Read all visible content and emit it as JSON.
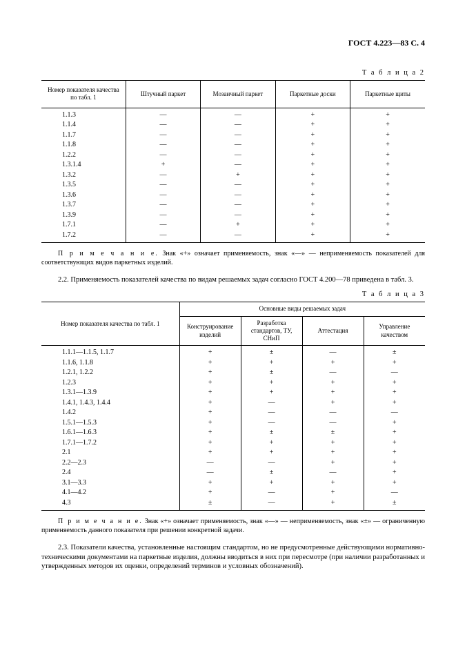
{
  "header": {
    "doc_ref": "ГОСТ 4.223—83 С. 4"
  },
  "table2": {
    "caption": "Т а б л и ц а   2",
    "headers": [
      "Номер показателя качества по табл. 1",
      "Штучный паркет",
      "Мозаичный паркет",
      "Паркетные доски",
      "Паркетные щиты"
    ],
    "rows": [
      {
        "label": "1.1.3",
        "c": [
          "—",
          "—",
          "+",
          "+"
        ]
      },
      {
        "label": "1.1.4",
        "c": [
          "—",
          "—",
          "+",
          "+"
        ]
      },
      {
        "label": "1.1.7",
        "c": [
          "—",
          "—",
          "+",
          "+"
        ]
      },
      {
        "label": "1.1.8",
        "c": [
          "—",
          "—",
          "+",
          "+"
        ]
      },
      {
        "label": "1.2.2",
        "c": [
          "—",
          "—",
          "+",
          "+"
        ]
      },
      {
        "label": "1.3.1.4",
        "c": [
          "+",
          "—",
          "+",
          "+"
        ]
      },
      {
        "label": "1.3.2",
        "c": [
          "—",
          "+",
          "+",
          "+"
        ]
      },
      {
        "label": "1.3.5",
        "c": [
          "—",
          "—",
          "+",
          "+"
        ]
      },
      {
        "label": "1.3.6",
        "c": [
          "—",
          "—",
          "+",
          "+"
        ]
      },
      {
        "label": "1.3.7",
        "c": [
          "—",
          "—",
          "+",
          "+"
        ]
      },
      {
        "label": "1.3.9",
        "c": [
          "—",
          "—",
          "+",
          "+"
        ]
      },
      {
        "label": "1.7.1",
        "c": [
          "—",
          "+",
          "+",
          "+"
        ]
      },
      {
        "label": "1.7.2",
        "c": [
          "—",
          "—",
          "+",
          "+"
        ]
      }
    ]
  },
  "note2": {
    "lead": "П р и м е ч а н и е.",
    "text": " Знак «+» означает применяемость, знак «—» — неприменяемость показателей для соответствующих видов паркетных изделий."
  },
  "para22": "2.2. Применяемость показателей качества по видам решаемых задач согласно ГОСТ 4.200—78 приведена в табл. 3.",
  "table3": {
    "caption": "Т а б л и ц а   3",
    "header_row1": "Номер показателя качества по табл. 1",
    "header_group": "Основные виды решаемых задач",
    "headers": [
      "Конструирование изделий",
      "Разработка стандартов, ТУ, СНиП",
      "Аттестация",
      "Управление качеством"
    ],
    "rows": [
      {
        "label": "1.1.1—1.1.5, 1.1.7",
        "c": [
          "+",
          "±",
          "—",
          "±"
        ]
      },
      {
        "label": "1.1.6, 1.1.8",
        "c": [
          "+",
          "+",
          "+",
          "+"
        ]
      },
      {
        "label": "1.2.1, 1.2.2",
        "c": [
          "+",
          "±",
          "—",
          "—"
        ]
      },
      {
        "label": "1.2.3",
        "c": [
          "+",
          "+",
          "+",
          "+"
        ]
      },
      {
        "label": "1.3.1—1.3.9",
        "c": [
          "+",
          "+",
          "+",
          "+"
        ]
      },
      {
        "label": "1.4.1, 1.4.3, 1.4.4",
        "c": [
          "+",
          "—",
          "+",
          "+"
        ]
      },
      {
        "label": "1.4.2",
        "c": [
          "+",
          "—",
          "—",
          "—"
        ]
      },
      {
        "label": "1.5.1—1.5.3",
        "c": [
          "+",
          "—",
          "—",
          "+"
        ]
      },
      {
        "label": "1.6.1—1.6.3",
        "c": [
          "+",
          "±",
          "±",
          "+"
        ]
      },
      {
        "label": "1.7.1—1.7.2",
        "c": [
          "+",
          "+",
          "+",
          "+"
        ]
      },
      {
        "label": "2.1",
        "c": [
          "+",
          "+",
          "+",
          "+"
        ]
      },
      {
        "label": "2.2—2.3",
        "c": [
          "—",
          "—",
          "+",
          "+"
        ]
      },
      {
        "label": "2.4",
        "c": [
          "—",
          "±",
          "—",
          "+"
        ]
      },
      {
        "label": "3.1—3.3",
        "c": [
          "+",
          "+",
          "+",
          "+"
        ]
      },
      {
        "label": "4.1—4.2",
        "c": [
          "+",
          "—",
          "+",
          "—"
        ]
      },
      {
        "label": "4.3",
        "c": [
          "±",
          "—",
          "+",
          "±"
        ]
      }
    ]
  },
  "note3": {
    "lead": "П р и м е ч а н и е.",
    "text": " Знак «+» означает применяемость, знак «—» — неприменяемость, знак «±» — ограниченную применяемость данного показателя при решении конкретной задачи."
  },
  "para23": "2.3. Показатели качества, установленные настоящим стандартом, но не предусмотренные действующими нормативно-техническими документами на паркетные изделия, должны вводиться в них при пересмотре (при наличии разработанных и утвержденных методов их оценки, определений терминов и условных обозначений)."
}
